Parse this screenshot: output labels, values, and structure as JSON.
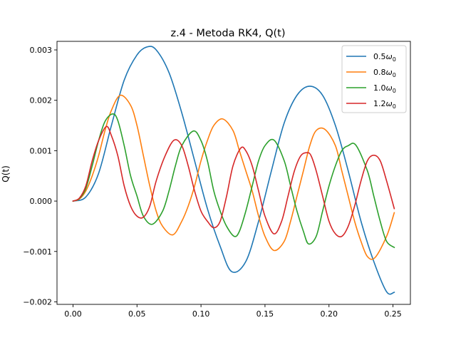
{
  "chart_data": {
    "type": "line",
    "title": "z.4 - Metoda RK4, Q(t)",
    "xlabel": "",
    "ylabel": "Q(t)",
    "xlim": [
      -0.0125,
      0.2636
    ],
    "ylim": [
      -0.00205,
      0.00317
    ],
    "xticks": [
      0.0,
      0.05,
      0.1,
      0.15,
      0.2,
      0.25
    ],
    "xtick_labels": [
      "0.00",
      "0.05",
      "0.10",
      "0.15",
      "0.20",
      "0.25"
    ],
    "yticks": [
      -0.002,
      -0.001,
      0.0,
      0.001,
      0.002,
      0.003
    ],
    "ytick_labels": [
      "−0.002",
      "−0.001",
      "0.000",
      "0.001",
      "0.002",
      "0.003"
    ],
    "grid": false,
    "legend_position": "top-right",
    "series": [
      {
        "name": "0.5ω0",
        "legend_main": "0.5",
        "color": "#1f77b4",
        "x": [
          0.0,
          0.01,
          0.02,
          0.03,
          0.04,
          0.05,
          0.058,
          0.065,
          0.075,
          0.085,
          0.095,
          0.105,
          0.115,
          0.124,
          0.135,
          0.145,
          0.155,
          0.165,
          0.175,
          0.185,
          0.195,
          0.205,
          0.215,
          0.225,
          0.235,
          0.245,
          0.251
        ],
        "y": [
          0.0,
          8e-05,
          0.00055,
          0.0015,
          0.0024,
          0.0029,
          0.00306,
          0.003,
          0.00255,
          0.00175,
          0.0008,
          -0.00015,
          -0.0009,
          -0.0014,
          -0.0012,
          -0.0004,
          0.0006,
          0.00155,
          0.0021,
          0.00228,
          0.0021,
          0.0015,
          0.0006,
          -0.0004,
          -0.0012,
          -0.0018,
          -0.00181
        ]
      },
      {
        "name": "0.8ω0",
        "legend_main": "0.8",
        "color": "#ff7f0e",
        "x": [
          0.0,
          0.005,
          0.01,
          0.015,
          0.02,
          0.025,
          0.03,
          0.037,
          0.045,
          0.05,
          0.055,
          0.06,
          0.065,
          0.07,
          0.078,
          0.085,
          0.09,
          0.095,
          0.1,
          0.105,
          0.11,
          0.117,
          0.125,
          0.13,
          0.135,
          0.14,
          0.145,
          0.15,
          0.157,
          0.165,
          0.17,
          0.175,
          0.18,
          0.185,
          0.19,
          0.197,
          0.205,
          0.21,
          0.215,
          0.22,
          0.225,
          0.23,
          0.236,
          0.245,
          0.251
        ],
        "y": [
          0.0,
          4e-05,
          0.0002,
          0.0005,
          0.0009,
          0.0014,
          0.0018,
          0.0021,
          0.0019,
          0.0015,
          0.0009,
          0.0003,
          -0.0002,
          -0.0005,
          -0.00067,
          -0.0004,
          -0.0001,
          0.0003,
          0.0008,
          0.0012,
          0.0015,
          0.00163,
          0.0014,
          0.001,
          0.0006,
          0.0002,
          -0.0003,
          -0.0007,
          -0.00098,
          -0.0008,
          -0.0004,
          0.0001,
          0.0006,
          0.0011,
          0.0014,
          0.00142,
          0.0011,
          0.0006,
          0.0001,
          -0.0004,
          -0.0008,
          -0.0011,
          -0.00112,
          -0.0007,
          -0.00023
        ]
      },
      {
        "name": "1.0ω0",
        "legend_main": "1.0",
        "color": "#2ca02c",
        "x": [
          0.0,
          0.005,
          0.01,
          0.015,
          0.02,
          0.025,
          0.031,
          0.035,
          0.04,
          0.045,
          0.05,
          0.055,
          0.062,
          0.07,
          0.075,
          0.08,
          0.085,
          0.094,
          0.1,
          0.105,
          0.11,
          0.115,
          0.12,
          0.126,
          0.13,
          0.135,
          0.14,
          0.145,
          0.15,
          0.157,
          0.165,
          0.17,
          0.175,
          0.18,
          0.184,
          0.19,
          0.195,
          0.2,
          0.205,
          0.21,
          0.215,
          0.221,
          0.23,
          0.235,
          0.24,
          0.245,
          0.251
        ],
        "y": [
          0.0,
          5e-05,
          0.00025,
          0.0007,
          0.0012,
          0.00158,
          0.00173,
          0.0016,
          0.0011,
          0.0005,
          0.0001,
          -0.0003,
          -0.00046,
          -0.0002,
          0.0002,
          0.0007,
          0.0011,
          0.00139,
          0.0012,
          0.0008,
          0.0002,
          -0.0002,
          -0.0005,
          -0.0007,
          -0.0006,
          -0.0002,
          0.0003,
          0.0008,
          0.0011,
          0.00121,
          0.0008,
          0.0003,
          -0.0002,
          -0.0006,
          -0.00085,
          -0.0007,
          -0.0002,
          0.0003,
          0.0007,
          0.001,
          0.0011,
          0.00111,
          0.0006,
          0.0001,
          -0.0004,
          -0.0008,
          -0.00092
        ]
      },
      {
        "name": "1.2ω0",
        "legend_main": "1.2",
        "color": "#d62728",
        "x": [
          0.0,
          0.005,
          0.01,
          0.015,
          0.02,
          0.026,
          0.03,
          0.035,
          0.04,
          0.045,
          0.05,
          0.055,
          0.06,
          0.065,
          0.072,
          0.079,
          0.085,
          0.09,
          0.095,
          0.1,
          0.105,
          0.11,
          0.115,
          0.12,
          0.125,
          0.131,
          0.135,
          0.14,
          0.145,
          0.15,
          0.157,
          0.163,
          0.168,
          0.173,
          0.178,
          0.183,
          0.186,
          0.19,
          0.195,
          0.2,
          0.205,
          0.21,
          0.215,
          0.22,
          0.225,
          0.23,
          0.235,
          0.24,
          0.245,
          0.251
        ],
        "y": [
          0.0,
          6e-05,
          0.0003,
          0.0008,
          0.0012,
          0.00148,
          0.0013,
          0.0009,
          0.0003,
          -0.0001,
          -0.0003,
          -0.00032,
          -0.0001,
          0.0004,
          0.0009,
          0.00121,
          0.0011,
          0.0007,
          0.0002,
          -0.0002,
          -0.0004,
          -0.00053,
          -0.0004,
          0.0001,
          0.0007,
          0.00105,
          0.001,
          0.0007,
          0.0002,
          -0.0003,
          -0.00065,
          -0.0004,
          0.0001,
          0.0006,
          0.0009,
          0.00096,
          0.0009,
          0.0006,
          0.0001,
          -0.0004,
          -0.00065,
          -0.0007,
          -0.0005,
          -0.0001,
          0.0004,
          0.0008,
          0.00091,
          0.0008,
          0.0004,
          -0.00015
        ]
      }
    ]
  }
}
